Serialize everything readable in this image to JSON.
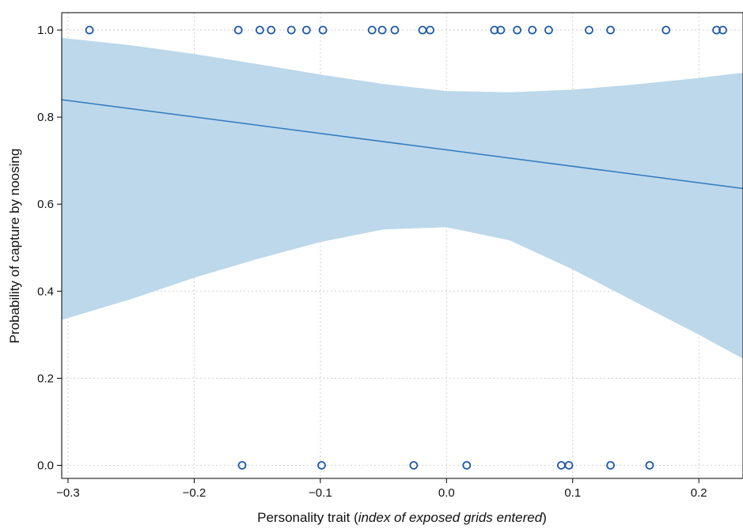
{
  "chart_data": {
    "type": "scatter",
    "xlabel_plain": "Personality trait (",
    "xlabel_italic": "index of exposed grids entered",
    "xlabel_close": ")",
    "ylabel": "Probability of capture by noosing",
    "xlim": [
      -0.305,
      0.235
    ],
    "ylim": [
      -0.03,
      1.04
    ],
    "x_ticks": [
      -0.3,
      -0.2,
      -0.1,
      0.0,
      0.1,
      0.2
    ],
    "x_tick_labels": [
      "−0.3",
      "−0.2",
      "−0.1",
      "0.0",
      "0.1",
      "0.2"
    ],
    "y_ticks": [
      0.0,
      0.2,
      0.4,
      0.6,
      0.8,
      1.0
    ],
    "y_tick_labels": [
      "0.0",
      "0.2",
      "0.4",
      "0.6",
      "0.8",
      "1.0"
    ],
    "grid": true,
    "colors": {
      "points": "#1f5aa6",
      "line": "#2e7ac0",
      "band": "#bcd8ea"
    },
    "fit_line": {
      "x": [
        -0.305,
        0.235
      ],
      "y": [
        0.84,
        0.636
      ]
    },
    "ci_band": {
      "x": [
        -0.305,
        -0.25,
        -0.2,
        -0.15,
        -0.1,
        -0.05,
        0.0,
        0.05,
        0.1,
        0.15,
        0.2,
        0.235
      ],
      "upper": [
        0.982,
        0.965,
        0.945,
        0.922,
        0.898,
        0.876,
        0.86,
        0.857,
        0.863,
        0.875,
        0.89,
        0.902
      ],
      "lower": [
        0.334,
        0.382,
        0.431,
        0.474,
        0.513,
        0.542,
        0.547,
        0.517,
        0.45,
        0.375,
        0.3,
        0.245
      ]
    },
    "points": [
      {
        "x": -0.283,
        "y": 1
      },
      {
        "x": -0.165,
        "y": 1
      },
      {
        "x": -0.148,
        "y": 1
      },
      {
        "x": -0.139,
        "y": 1
      },
      {
        "x": -0.123,
        "y": 1
      },
      {
        "x": -0.111,
        "y": 1
      },
      {
        "x": -0.098,
        "y": 1
      },
      {
        "x": -0.059,
        "y": 1
      },
      {
        "x": -0.051,
        "y": 1
      },
      {
        "x": -0.041,
        "y": 1
      },
      {
        "x": -0.019,
        "y": 1
      },
      {
        "x": -0.013,
        "y": 1
      },
      {
        "x": 0.038,
        "y": 1
      },
      {
        "x": 0.043,
        "y": 1
      },
      {
        "x": 0.056,
        "y": 1
      },
      {
        "x": 0.068,
        "y": 1
      },
      {
        "x": 0.081,
        "y": 1
      },
      {
        "x": 0.113,
        "y": 1
      },
      {
        "x": 0.13,
        "y": 1
      },
      {
        "x": 0.174,
        "y": 1
      },
      {
        "x": 0.214,
        "y": 1
      },
      {
        "x": 0.219,
        "y": 1
      },
      {
        "x": -0.162,
        "y": 0
      },
      {
        "x": -0.099,
        "y": 0
      },
      {
        "x": -0.026,
        "y": 0
      },
      {
        "x": 0.016,
        "y": 0
      },
      {
        "x": 0.091,
        "y": 0
      },
      {
        "x": 0.097,
        "y": 0
      },
      {
        "x": 0.13,
        "y": 0
      },
      {
        "x": 0.161,
        "y": 0
      }
    ]
  }
}
